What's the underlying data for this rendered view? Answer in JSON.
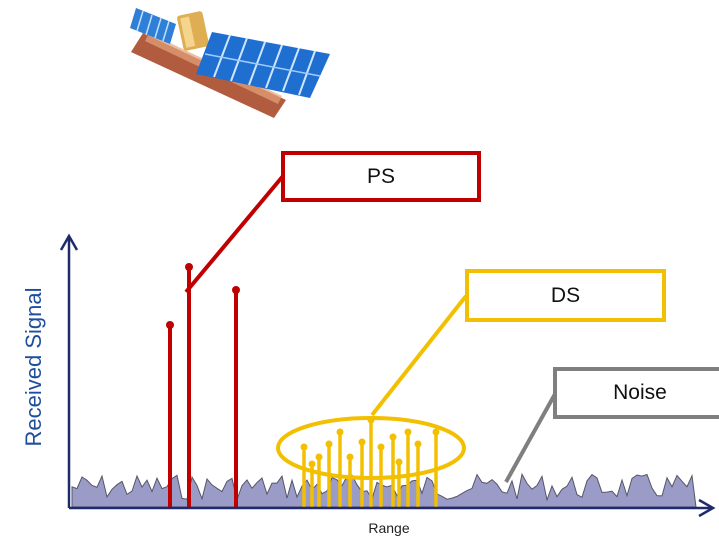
{
  "labels": {
    "ps": "PS",
    "ds": "DS",
    "noise": "Noise",
    "y_axis": "Received Signal",
    "x_axis": "Range"
  },
  "icons": {
    "satellite": "satellite-icon"
  },
  "colors": {
    "ps": "#c00000",
    "ds": "#f2c000",
    "noise_fill": "#9b9bc8",
    "noise_line": "#555566",
    "noise_callout": "#7f7f7f",
    "axis": "#1f2a6b",
    "y_label": "#1f4e9c"
  }
}
